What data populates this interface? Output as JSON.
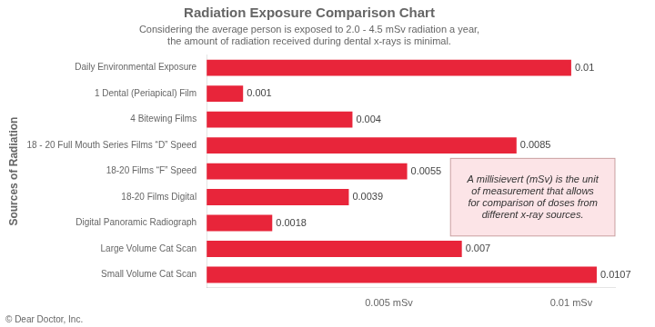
{
  "chart_data": {
    "type": "bar",
    "orientation": "horizontal",
    "title": "Radiation Exposure Comparison Chart",
    "subtitle": "Considering the average person is exposed to 2.0 - 4.5 mSv radiation a year,\nthe amount of radiation received during dental x-rays is minimal.",
    "ylabel": "Sources of Radiation",
    "categories": [
      "Daily Environmental Exposure",
      "1 Dental (Periapical) Film",
      "4 Bitewing Films",
      "18 - 20 Full Mouth Series Films “D” Speed",
      "18-20 Films “F” Speed",
      "18-20 Films Digital",
      "Digital Panoramic Radiograph",
      "Large Volume Cat Scan",
      "Small Volume Cat Scan"
    ],
    "values": [
      0.01,
      0.001,
      0.004,
      0.0085,
      0.0055,
      0.0039,
      0.0018,
      0.007,
      0.0107
    ],
    "color": "#e8253a",
    "xlim": [
      0,
      0.0112
    ],
    "xticks": [
      {
        "value": 0.005,
        "label": "0.005 mSv"
      },
      {
        "value": 0.01,
        "label": "0.01 mSv"
      }
    ],
    "grid": false,
    "data_labels": true,
    "annotation": "A millisievert (mSv) is the unit\nof measurement that allows\nfor comparison of doses from\ndifferent x-ray sources.",
    "footer": "© Dear Doctor, Inc."
  }
}
